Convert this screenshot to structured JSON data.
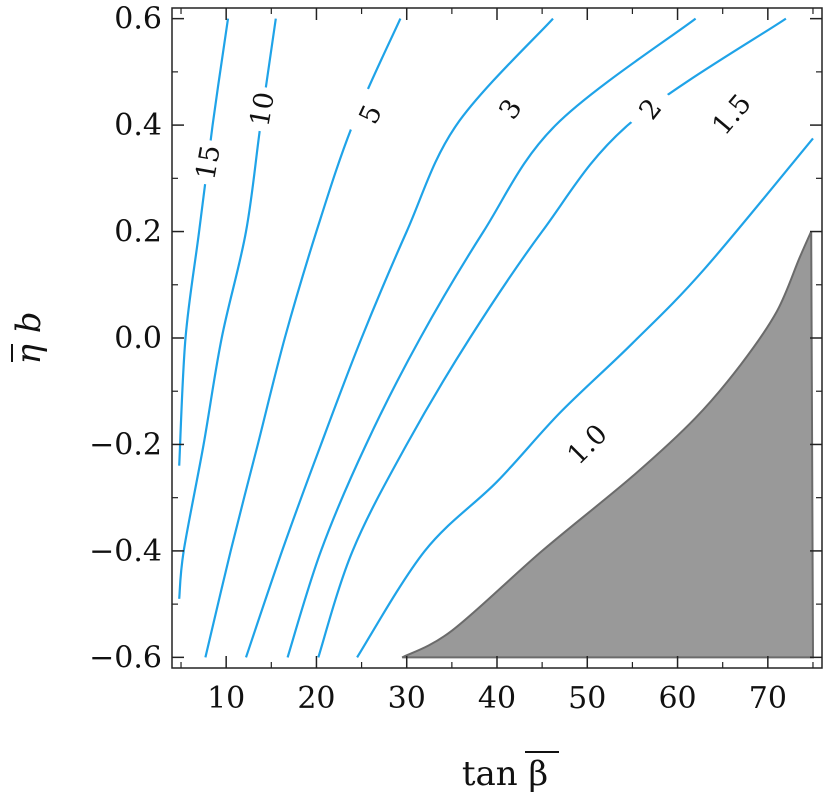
{
  "chart_data": {
    "type": "contour",
    "xlabel": "tan β",
    "ylabel": "η b",
    "xlim": [
      4,
      76
    ],
    "ylim": [
      -0.62,
      0.62
    ],
    "x_ticks": [
      10,
      20,
      30,
      40,
      50,
      60,
      70
    ],
    "x_tick_labels": [
      "10",
      "20",
      "30",
      "40",
      "50",
      "60",
      "70"
    ],
    "y_ticks": [
      -0.6,
      -0.4,
      -0.2,
      0.0,
      0.2,
      0.4,
      0.6
    ],
    "y_tick_labels": [
      "−0.6",
      "−0.4",
      "−0.2",
      "0.0",
      "0.2",
      "0.4",
      "0.6"
    ],
    "grid": false,
    "line_color": "#1fa3e8",
    "excluded_region_color": "#999999",
    "contours": [
      {
        "label": "15",
        "points": [
          [
            4.8,
            -0.24
          ],
          [
            5.5,
            0.0
          ],
          [
            7.0,
            0.2
          ],
          [
            8.5,
            0.4
          ],
          [
            10.2,
            0.6
          ]
        ],
        "label_at": [
          8.0,
          0.33
        ],
        "label_rotation": -80
      },
      {
        "label": "10",
        "points": [
          [
            4.8,
            -0.49
          ],
          [
            5.3,
            -0.4
          ],
          [
            7.5,
            -0.2
          ],
          [
            9.5,
            0.0
          ],
          [
            12.2,
            0.2
          ],
          [
            13.8,
            0.4
          ],
          [
            15.5,
            0.6
          ]
        ],
        "label_at": [
          14.0,
          0.43
        ],
        "label_rotation": -80
      },
      {
        "label": "5",
        "points": [
          [
            7.7,
            -0.6
          ],
          [
            10.5,
            -0.4
          ],
          [
            13.5,
            -0.2
          ],
          [
            16.5,
            0.0
          ],
          [
            20.0,
            0.2
          ],
          [
            24.0,
            0.4
          ],
          [
            29.3,
            0.6
          ]
        ],
        "label_at": [
          26.0,
          0.42
        ],
        "label_rotation": -65
      },
      {
        "label": "3",
        "points": [
          [
            12.2,
            -0.6
          ],
          [
            16.2,
            -0.4
          ],
          [
            20.5,
            -0.2
          ],
          [
            25.0,
            0.0
          ],
          [
            30.0,
            0.2
          ],
          [
            35.5,
            0.4
          ],
          [
            46.2,
            0.6
          ]
        ],
        "label_at": [
          41.5,
          0.43
        ],
        "label_rotation": -57
      },
      {
        "label": "2",
        "points": [
          [
            16.8,
            -0.6
          ],
          [
            20.5,
            -0.4
          ],
          [
            25.5,
            -0.2
          ],
          [
            31.5,
            0.0
          ],
          [
            38.5,
            0.2
          ],
          [
            46.5,
            0.4
          ],
          [
            62.0,
            0.6
          ]
        ],
        "label_at": [
          57.0,
          0.43
        ],
        "label_rotation": -52
      },
      {
        "label": "1.5",
        "points": [
          [
            20.2,
            -0.6
          ],
          [
            24.0,
            -0.4
          ],
          [
            30.0,
            -0.2
          ],
          [
            37.0,
            0.0
          ],
          [
            45.0,
            0.2
          ],
          [
            54.5,
            0.4
          ],
          [
            72.0,
            0.6
          ]
        ],
        "label_at": [
          66.0,
          0.42
        ],
        "label_rotation": -50
      },
      {
        "label": "1.0",
        "points": [
          [
            24.5,
            -0.6
          ],
          [
            32.0,
            -0.4
          ],
          [
            40.0,
            -0.27
          ],
          [
            47.0,
            -0.14
          ],
          [
            55.0,
            -0.01
          ],
          [
            63.0,
            0.13
          ],
          [
            75.0,
            0.375
          ]
        ],
        "label_at": [
          50.0,
          -0.2
        ],
        "label_rotation": -45
      }
    ],
    "excluded_region": [
      [
        29.5,
        -0.6
      ],
      [
        35.0,
        -0.55
      ],
      [
        45.0,
        -0.4
      ],
      [
        55.0,
        -0.26
      ],
      [
        62.0,
        -0.15
      ],
      [
        67.0,
        -0.05
      ],
      [
        71.0,
        0.05
      ],
      [
        73.5,
        0.15
      ],
      [
        74.8,
        0.2
      ],
      [
        75.0,
        -0.6
      ]
    ]
  }
}
